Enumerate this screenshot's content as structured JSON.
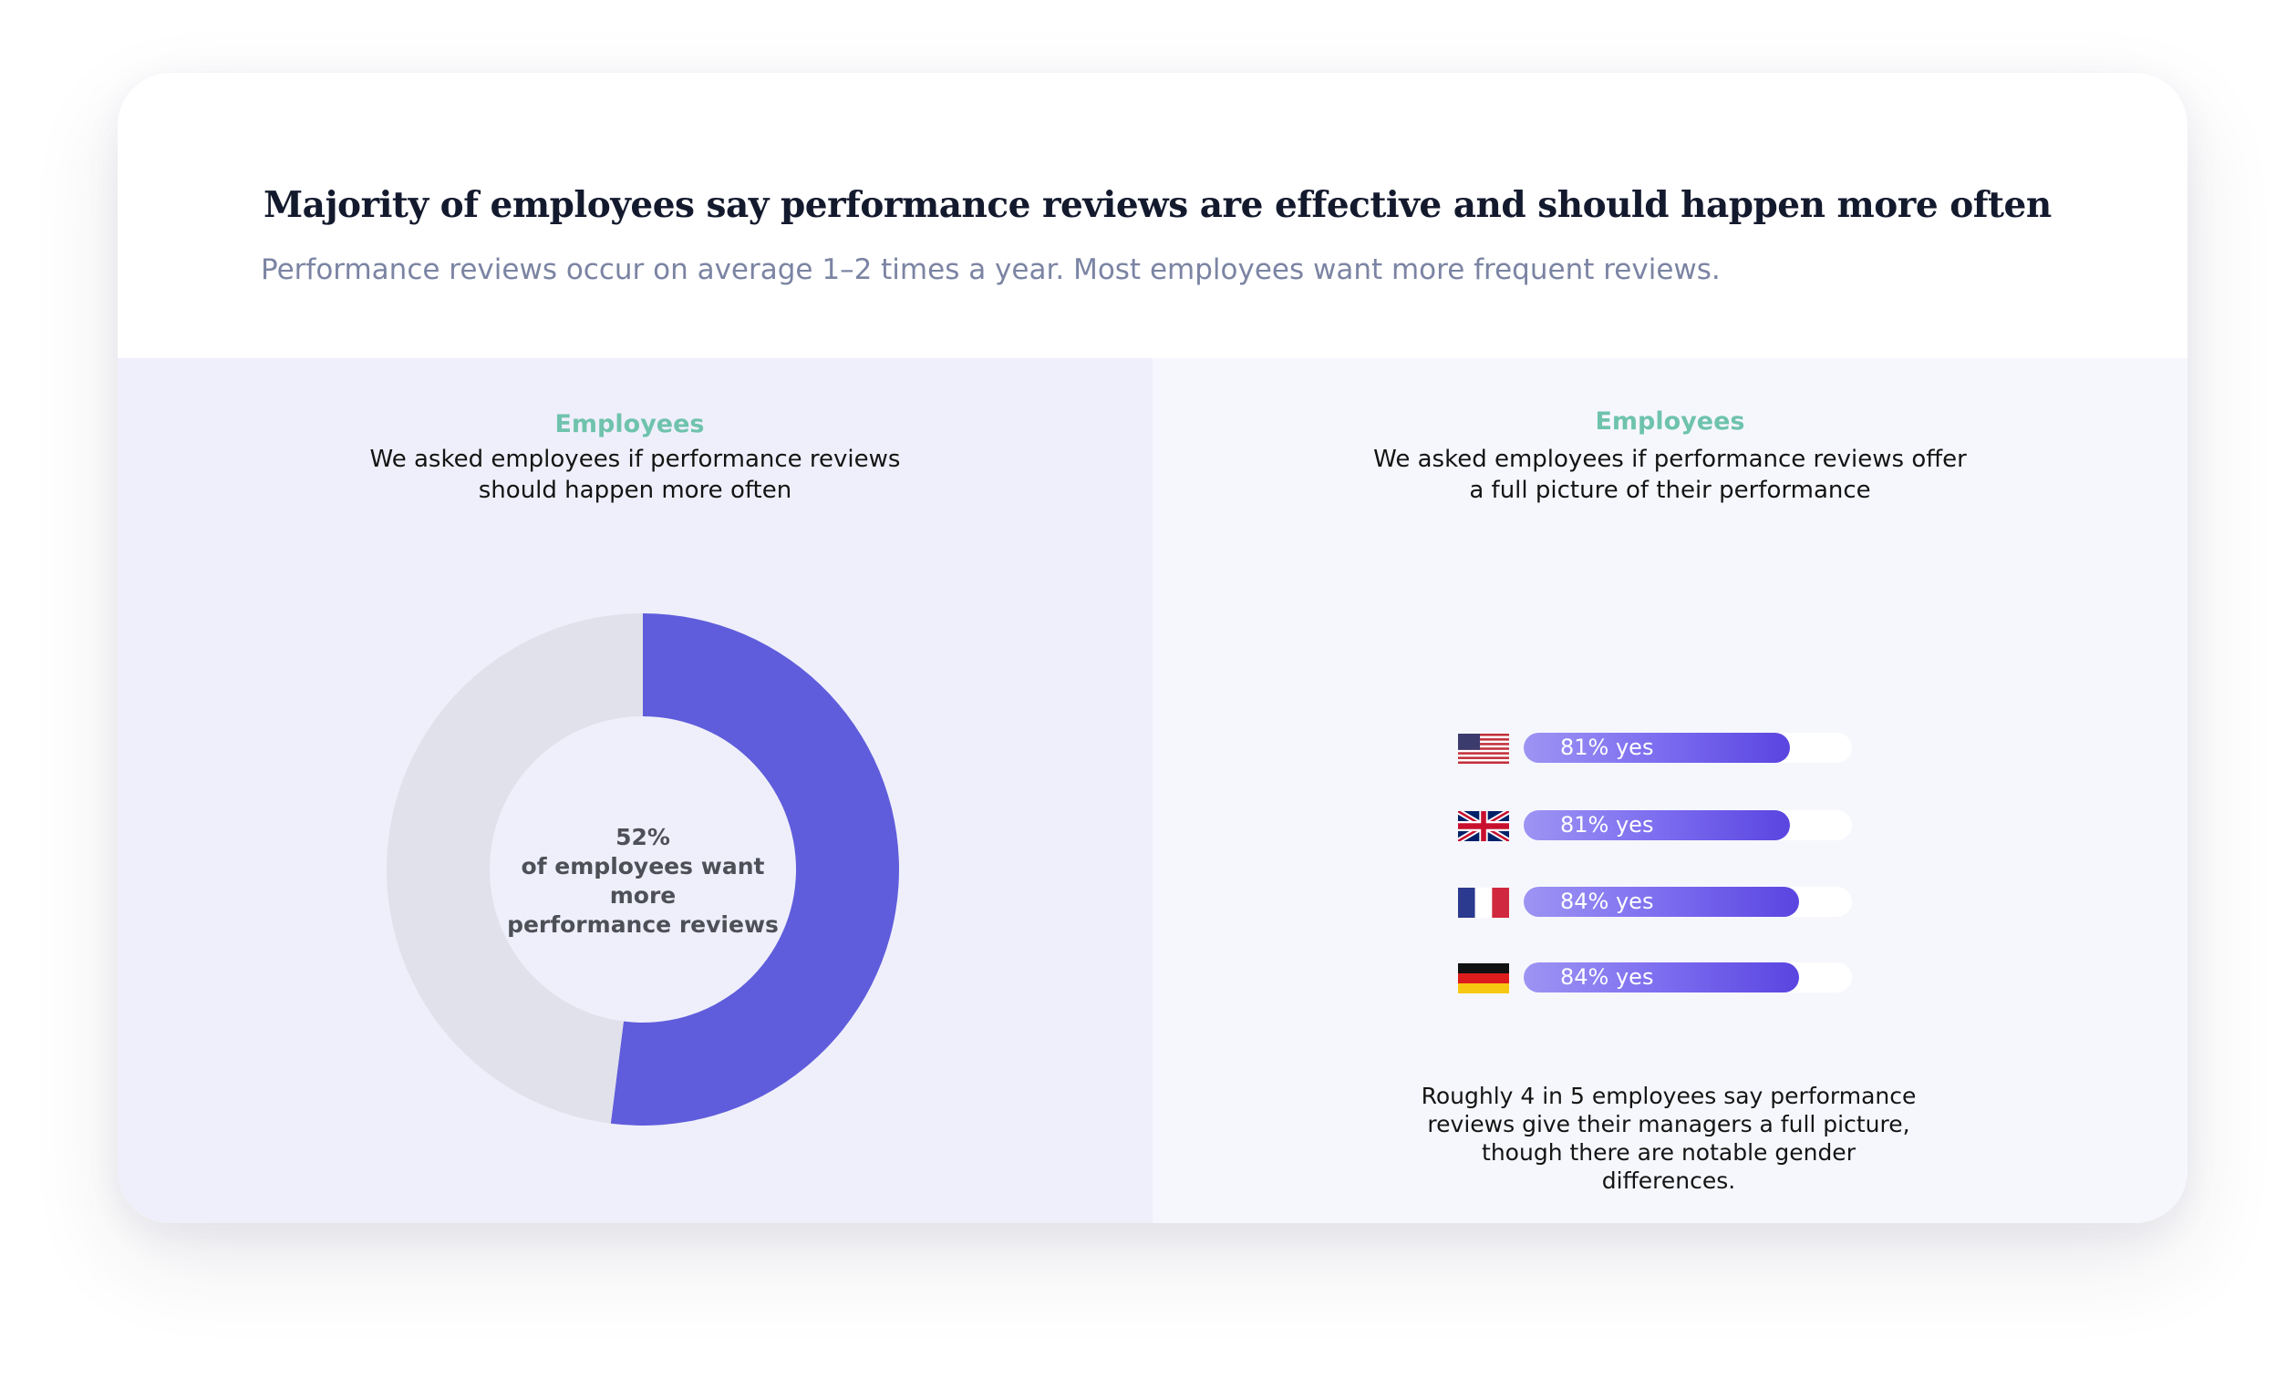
{
  "header": {
    "title": "Majority of employees say performance reviews are effective and should happen more often",
    "subtitle": "Performance reviews occur on average 1–2 times a year. Most employees want more frequent reviews."
  },
  "left_panel": {
    "eyebrow": "Employees",
    "question_line1": "We asked employees if performance reviews",
    "question_line2": "should happen more often",
    "center_value": "52%",
    "center_line1": "of employees want more",
    "center_line2": "performance reviews"
  },
  "right_panel": {
    "eyebrow": "Employees",
    "question_line1": "We asked employees if performance reviews offer",
    "question_line2": "a full picture of their performance",
    "footnote_lines": [
      "Roughly 4 in 5 employees say performance",
      "reviews give their managers a full picture,",
      "though there are notable gender",
      "differences."
    ]
  },
  "colors": {
    "accent": "#5f5ddb",
    "donut_remainder": "#e1e1eb",
    "eyebrow": "#6fc3ad",
    "subtitle": "#7b84a3"
  },
  "chart_data": [
    {
      "type": "pie",
      "variant": "donut",
      "title": "",
      "slices": [
        {
          "label": "want more performance reviews",
          "value": 52
        },
        {
          "label": "",
          "value": 48
        }
      ]
    },
    {
      "type": "bar",
      "orientation": "horizontal",
      "categories": [
        "us-flag-icon",
        "uk-flag-icon",
        "france-flag-icon",
        "germany-flag-icon"
      ],
      "values": [
        81,
        81,
        84,
        84
      ],
      "labels": [
        "81% yes",
        "81% yes",
        "84% yes",
        "84% yes"
      ],
      "xlim": [
        0,
        100
      ],
      "xlabel": "",
      "ylabel": ""
    }
  ]
}
